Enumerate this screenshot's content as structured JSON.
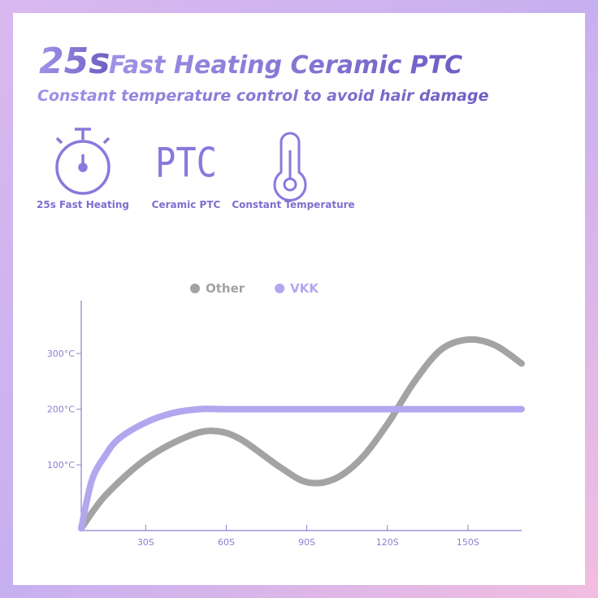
{
  "header": {
    "title_number": "25s",
    "title_rest": "Fast Heating Ceramic PTC",
    "subtitle": "Constant temperature control to avoid hair damage"
  },
  "features": [
    {
      "label": "25s Fast Heating"
    },
    {
      "icon_text": "PTC",
      "label": "Ceramic PTC"
    },
    {
      "label": "Constant Temperature"
    }
  ],
  "chart_data": {
    "type": "line",
    "series": [
      {
        "name": "Other",
        "color": "#a3a3a3",
        "x": [
          6,
          15,
          30,
          45,
          55,
          65,
          80,
          90,
          100,
          110,
          120,
          130,
          140,
          150,
          160,
          170
        ],
        "values": [
          -14,
          45,
          110,
          150,
          161,
          147,
          96,
          69,
          74,
          110,
          173,
          249,
          307,
          325,
          315,
          282
        ]
      },
      {
        "name": "VKK",
        "color": "#b3a6ee",
        "x": [
          6,
          10,
          15,
          20,
          30,
          40,
          50,
          60,
          80,
          100,
          120,
          140,
          160,
          170
        ],
        "values": [
          -14,
          73,
          117,
          147,
          176,
          193,
          200,
          200,
          200,
          200,
          200,
          200,
          200,
          200
        ]
      }
    ],
    "xlim": [
      6,
      170
    ],
    "ylim": [
      -18,
      395
    ],
    "xticks": [
      {
        "value": 30,
        "label": "30S"
      },
      {
        "value": 60,
        "label": "60S"
      },
      {
        "value": 90,
        "label": "90S"
      },
      {
        "value": 120,
        "label": "120S"
      },
      {
        "value": 150,
        "label": "150S"
      }
    ],
    "yticks": [
      {
        "value": 100,
        "label": "100°C"
      },
      {
        "value": 200,
        "label": "200°C"
      },
      {
        "value": 300,
        "label": "300°C"
      }
    ],
    "legend": "top"
  }
}
